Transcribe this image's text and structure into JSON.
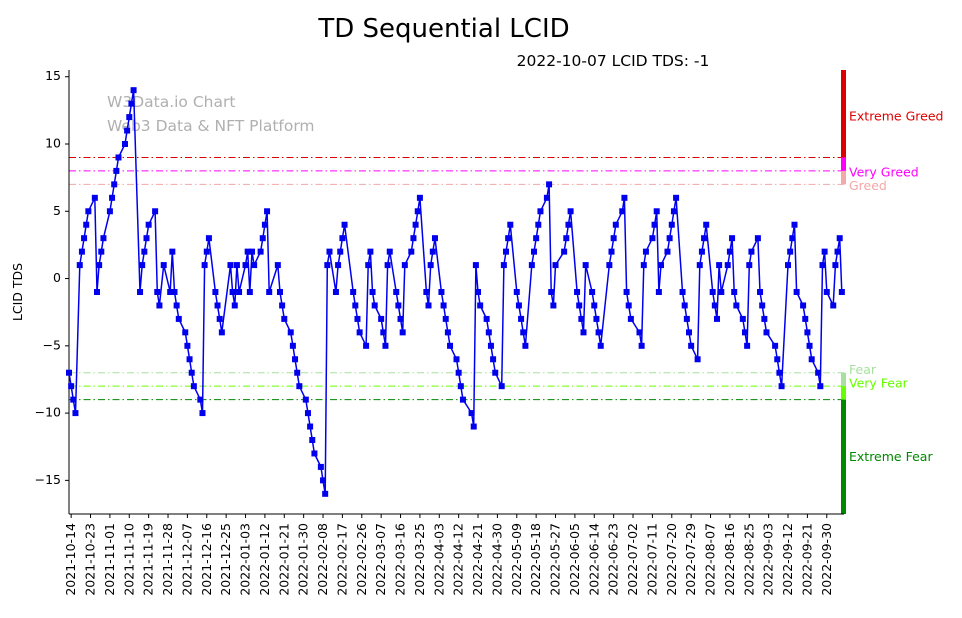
{
  "chart_data": {
    "type": "line",
    "title": "TD Sequential LCID",
    "subtitle": "2022-10-07 LCID TDS: -1",
    "xlabel": "",
    "ylabel": "LCID TDS",
    "ylim": [
      -17.5,
      15.5
    ],
    "yticks": [
      -15,
      -10,
      -5,
      0,
      5,
      10,
      15
    ],
    "xlim": [
      "2021-10-13",
      "2022-10-08"
    ],
    "xticks": [
      "2021-10-14",
      "2021-10-23",
      "2021-11-01",
      "2021-11-10",
      "2021-11-19",
      "2021-11-28",
      "2021-12-07",
      "2021-12-16",
      "2021-12-25",
      "2022-01-03",
      "2022-01-12",
      "2022-01-21",
      "2022-01-30",
      "2022-02-08",
      "2022-02-17",
      "2022-02-26",
      "2022-03-07",
      "2022-03-16",
      "2022-03-25",
      "2022-04-03",
      "2022-04-12",
      "2022-04-21",
      "2022-04-30",
      "2022-05-09",
      "2022-05-18",
      "2022-05-27",
      "2022-06-05",
      "2022-06-14",
      "2022-06-23",
      "2022-07-02",
      "2022-07-11",
      "2022-07-20",
      "2022-07-29",
      "2022-08-07",
      "2022-08-16",
      "2022-08-25",
      "2022-09-03",
      "2022-09-12",
      "2022-09-21",
      "2022-09-30"
    ],
    "watermark": [
      "W3Data.io Chart",
      "Web3 Data & NFT Platform"
    ],
    "grid": false,
    "series": [
      {
        "color": "#0000ee",
        "marker": "square",
        "x": [
          "2021-10-13",
          "2021-10-14",
          "2021-10-15",
          "2021-10-16",
          "2021-10-18",
          "2021-10-19",
          "2021-10-20",
          "2021-10-21",
          "2021-10-22",
          "2021-10-25",
          "2021-10-26",
          "2021-10-27",
          "2021-10-28",
          "2021-10-29",
          "2021-11-01",
          "2021-11-02",
          "2021-11-03",
          "2021-11-04",
          "2021-11-05",
          "2021-11-08",
          "2021-11-09",
          "2021-11-10",
          "2021-11-11",
          "2021-11-12",
          "2021-11-15",
          "2021-11-16",
          "2021-11-17",
          "2021-11-18",
          "2021-11-19",
          "2021-11-22",
          "2021-11-23",
          "2021-11-24",
          "2021-11-26",
          "2021-11-29",
          "2021-11-30",
          "2021-12-01",
          "2021-12-02",
          "2021-12-03",
          "2021-12-06",
          "2021-12-07",
          "2021-12-08",
          "2021-12-09",
          "2021-12-10",
          "2021-12-13",
          "2021-12-14",
          "2021-12-15",
          "2021-12-16",
          "2021-12-17",
          "2021-12-20",
          "2021-12-21",
          "2021-12-22",
          "2021-12-23",
          "2021-12-27",
          "2021-12-28",
          "2021-12-29",
          "2021-12-30",
          "2021-12-31",
          "2022-01-03",
          "2022-01-04",
          "2022-01-05",
          "2022-01-06",
          "2022-01-07",
          "2022-01-10",
          "2022-01-11",
          "2022-01-12",
          "2022-01-13",
          "2022-01-14",
          "2022-01-18",
          "2022-01-19",
          "2022-01-20",
          "2022-01-21",
          "2022-01-24",
          "2022-01-25",
          "2022-01-26",
          "2022-01-27",
          "2022-01-28",
          "2022-01-31",
          "2022-02-01",
          "2022-02-02",
          "2022-02-03",
          "2022-02-04",
          "2022-02-07",
          "2022-02-08",
          "2022-02-09",
          "2022-02-10",
          "2022-02-11",
          "2022-02-14",
          "2022-02-15",
          "2022-02-16",
          "2022-02-17",
          "2022-02-18",
          "2022-02-22",
          "2022-02-23",
          "2022-02-24",
          "2022-02-25",
          "2022-02-28",
          "2022-03-01",
          "2022-03-02",
          "2022-03-03",
          "2022-03-04",
          "2022-03-07",
          "2022-03-08",
          "2022-03-09",
          "2022-03-10",
          "2022-03-11",
          "2022-03-14",
          "2022-03-15",
          "2022-03-16",
          "2022-03-17",
          "2022-03-18",
          "2022-03-21",
          "2022-03-22",
          "2022-03-23",
          "2022-03-24",
          "2022-03-25",
          "2022-03-28",
          "2022-03-29",
          "2022-03-30",
          "2022-03-31",
          "2022-04-01",
          "2022-04-04",
          "2022-04-05",
          "2022-04-06",
          "2022-04-07",
          "2022-04-08",
          "2022-04-11",
          "2022-04-12",
          "2022-04-13",
          "2022-04-14",
          "2022-04-18",
          "2022-04-19",
          "2022-04-20",
          "2022-04-21",
          "2022-04-22",
          "2022-04-25",
          "2022-04-26",
          "2022-04-27",
          "2022-04-28",
          "2022-04-29",
          "2022-05-02",
          "2022-05-03",
          "2022-05-04",
          "2022-05-05",
          "2022-05-06",
          "2022-05-09",
          "2022-05-10",
          "2022-05-11",
          "2022-05-12",
          "2022-05-13",
          "2022-05-16",
          "2022-05-17",
          "2022-05-18",
          "2022-05-19",
          "2022-05-20",
          "2022-05-23",
          "2022-05-24",
          "2022-05-25",
          "2022-05-26",
          "2022-05-27",
          "2022-05-31",
          "2022-06-01",
          "2022-06-02",
          "2022-06-03",
          "2022-06-06",
          "2022-06-07",
          "2022-06-08",
          "2022-06-09",
          "2022-06-10",
          "2022-06-13",
          "2022-06-14",
          "2022-06-15",
          "2022-06-16",
          "2022-06-17",
          "2022-06-21",
          "2022-06-22",
          "2022-06-23",
          "2022-06-24",
          "2022-06-27",
          "2022-06-28",
          "2022-06-29",
          "2022-06-30",
          "2022-07-01",
          "2022-07-05",
          "2022-07-06",
          "2022-07-07",
          "2022-07-08",
          "2022-07-11",
          "2022-07-12",
          "2022-07-13",
          "2022-07-14",
          "2022-07-15",
          "2022-07-18",
          "2022-07-19",
          "2022-07-20",
          "2022-07-21",
          "2022-07-22",
          "2022-07-25",
          "2022-07-26",
          "2022-07-27",
          "2022-07-28",
          "2022-07-29",
          "2022-08-01",
          "2022-08-02",
          "2022-08-03",
          "2022-08-04",
          "2022-08-05",
          "2022-08-08",
          "2022-08-09",
          "2022-08-10",
          "2022-08-11",
          "2022-08-12",
          "2022-08-15",
          "2022-08-16",
          "2022-08-17",
          "2022-08-18",
          "2022-08-19",
          "2022-08-22",
          "2022-08-23",
          "2022-08-24",
          "2022-08-25",
          "2022-08-26",
          "2022-08-29",
          "2022-08-30",
          "2022-08-31",
          "2022-09-01",
          "2022-09-02",
          "2022-09-06",
          "2022-09-07",
          "2022-09-08",
          "2022-09-09",
          "2022-09-12",
          "2022-09-13",
          "2022-09-14",
          "2022-09-15",
          "2022-09-16",
          "2022-09-19",
          "2022-09-20",
          "2022-09-21",
          "2022-09-22",
          "2022-09-23",
          "2022-09-26",
          "2022-09-27",
          "2022-09-28",
          "2022-09-29",
          "2022-09-30",
          "2022-10-03",
          "2022-10-04",
          "2022-10-05",
          "2022-10-06",
          "2022-10-07"
        ],
        "values": [
          -7,
          -8,
          -9,
          -10,
          1,
          2,
          3,
          4,
          5,
          6,
          -1,
          1,
          2,
          3,
          5,
          6,
          7,
          8,
          9,
          10,
          11,
          12,
          13,
          14,
          -1,
          1,
          2,
          3,
          4,
          5,
          -1,
          -2,
          1,
          -1,
          2,
          -1,
          -2,
          -3,
          -4,
          -5,
          -6,
          -7,
          -8,
          -9,
          -10,
          1,
          2,
          3,
          -1,
          -2,
          -3,
          -4,
          1,
          -1,
          -2,
          1,
          -1,
          1,
          2,
          -1,
          2,
          1,
          2,
          3,
          4,
          5,
          -1,
          1,
          -1,
          -2,
          -3,
          -4,
          -5,
          -6,
          -7,
          -8,
          -9,
          -10,
          -11,
          -12,
          -13,
          -14,
          -15,
          -16,
          1,
          2,
          -1,
          1,
          2,
          3,
          4,
          -1,
          -2,
          -3,
          -4,
          -5,
          1,
          2,
          -1,
          -2,
          -3,
          -4,
          -5,
          1,
          2,
          -1,
          -2,
          -3,
          -4,
          1,
          2,
          3,
          4,
          5,
          6,
          -1,
          -2,
          1,
          2,
          3,
          -1,
          -2,
          -3,
          -4,
          -5,
          -6,
          -7,
          -8,
          -9,
          -10,
          -11,
          1,
          -1,
          -2,
          -3,
          -4,
          -5,
          -6,
          -7,
          -8,
          1,
          2,
          3,
          4,
          -1,
          -2,
          -3,
          -4,
          -5,
          1,
          2,
          3,
          4,
          5,
          6,
          7,
          -1,
          -2,
          1,
          2,
          3,
          4,
          5,
          -1,
          -2,
          -3,
          -4,
          1,
          -1,
          -2,
          -3,
          -4,
          -5,
          1,
          2,
          3,
          4,
          5,
          6,
          -1,
          -2,
          -3,
          -4,
          -5,
          1,
          2,
          3,
          4,
          5,
          -1,
          1,
          2,
          3,
          4,
          5,
          6,
          -1,
          -2,
          -3,
          -4,
          -5,
          -6,
          1,
          2,
          3,
          4,
          -1,
          -2,
          -3,
          1,
          -1,
          1,
          2,
          3,
          -1,
          -2,
          -3,
          -4,
          -5,
          1,
          2,
          3,
          -1,
          -2,
          -3,
          -4,
          -5,
          -6,
          -7,
          -8,
          1,
          2,
          3,
          4,
          -1,
          -2,
          -3,
          -4,
          -5,
          -6,
          -7,
          -8,
          1,
          2,
          -1,
          -2,
          1,
          2,
          3,
          -1
        ]
      }
    ],
    "thresholds": [
      {
        "label": "Extreme Greed",
        "y": 9,
        "color": "#dd0000",
        "band": [
          9,
          15.5
        ]
      },
      {
        "label": "Very Greed",
        "y": 8,
        "color": "#ff00ff",
        "band": [
          8,
          9
        ]
      },
      {
        "label": "Greed",
        "y": 7,
        "color": "#f4a8a8",
        "band": [
          7,
          8
        ]
      },
      {
        "label": "Fear",
        "y": -7,
        "color": "#a8e0a0",
        "band": [
          -8,
          -7
        ]
      },
      {
        "label": "Very Fear",
        "y": -8,
        "color": "#66ff00",
        "band": [
          -9,
          -8
        ]
      },
      {
        "label": "Extreme Fear",
        "y": -9,
        "color": "#008800",
        "band": [
          -17.5,
          -9
        ]
      }
    ]
  }
}
